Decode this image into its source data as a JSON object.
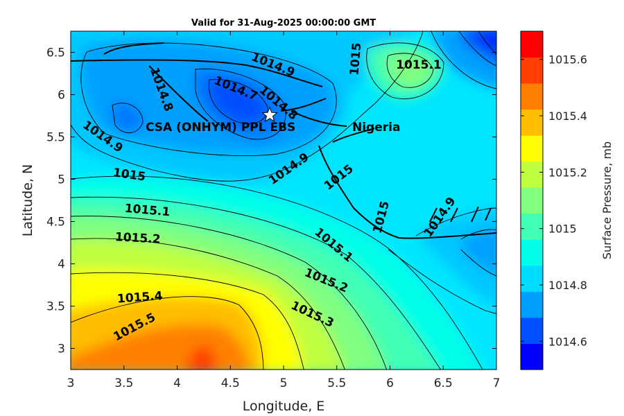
{
  "chart_data": {
    "type": "contour",
    "title": "Valid for 31-Aug-2025 00:00:00 GMT",
    "xlabel": "Longitude, E",
    "ylabel": "Latitude, N",
    "colorbar_label": "Surface Pressure, mb",
    "xlim": [
      3,
      7
    ],
    "ylim": [
      2.75,
      6.75
    ],
    "xticks": [
      "3",
      "3.5",
      "4",
      "4.5",
      "5",
      "5.5",
      "6",
      "6.5",
      "7"
    ],
    "yticks": [
      "3",
      "3.5",
      "4",
      "4.5",
      "5",
      "5.5",
      "6",
      "6.5"
    ],
    "colorbar_range": [
      1014.5,
      1015.7
    ],
    "colorbar_ticks": [
      "1014.6",
      "1014.8",
      "1015",
      "1015.2",
      "1015.4",
      "1015.6"
    ],
    "colorbar_colors": [
      "#0000ff",
      "#0050ff",
      "#00a0ff",
      "#00dcff",
      "#00ffe8",
      "#40ffb4",
      "#80ff80",
      "#c0ff40",
      "#ffff00",
      "#ffbe00",
      "#ff8000",
      "#ff4000",
      "#ff0000"
    ],
    "contour_labels": [
      {
        "text": "1014.9",
        "lon": 4.9,
        "lat": 6.35,
        "rot": 22
      },
      {
        "text": "1014.7",
        "lon": 4.55,
        "lat": 6.07,
        "rot": 22
      },
      {
        "text": "1014.8",
        "lon": 3.85,
        "lat": 6.06,
        "rot": 70
      },
      {
        "text": "1014.8",
        "lon": 4.95,
        "lat": 5.9,
        "rot": 40
      },
      {
        "text": "1014.9",
        "lon": 3.3,
        "lat": 5.5,
        "rot": 35
      },
      {
        "text": "1014.9",
        "lon": 5.05,
        "lat": 5.12,
        "rot": -35
      },
      {
        "text": "1015",
        "lon": 5.68,
        "lat": 6.42,
        "rot": -85
      },
      {
        "text": "1015.1",
        "lon": 6.27,
        "lat": 6.35,
        "rot": 0
      },
      {
        "text": "1015",
        "lon": 3.55,
        "lat": 5.05,
        "rot": 8
      },
      {
        "text": "1015",
        "lon": 5.52,
        "lat": 5.02,
        "rot": -38
      },
      {
        "text": "1015",
        "lon": 5.92,
        "lat": 4.55,
        "rot": -75
      },
      {
        "text": "1014.9",
        "lon": 6.47,
        "lat": 4.55,
        "rot": -55
      },
      {
        "text": "1015.1",
        "lon": 3.72,
        "lat": 4.63,
        "rot": 5
      },
      {
        "text": "1015.1",
        "lon": 5.47,
        "lat": 4.22,
        "rot": 40
      },
      {
        "text": "1015.2",
        "lon": 3.63,
        "lat": 4.3,
        "rot": 3
      },
      {
        "text": "1015.2",
        "lon": 5.4,
        "lat": 3.8,
        "rot": 22
      },
      {
        "text": "1015.4",
        "lon": 3.65,
        "lat": 3.6,
        "rot": -4
      },
      {
        "text": "1015.3",
        "lon": 5.27,
        "lat": 3.4,
        "rot": 25
      },
      {
        "text": "1015.5",
        "lon": 3.6,
        "lat": 3.25,
        "rot": -28
      }
    ],
    "annotations": [
      {
        "text": "CSA (ONHYM) PPL EBS",
        "lon": 3.35,
        "lat": 5.61
      },
      {
        "text": "Nigeria",
        "lon": 5.62,
        "lat": 5.61
      }
    ],
    "marker": {
      "symbol": "star",
      "lon": 4.87,
      "lat": 5.76
    }
  }
}
